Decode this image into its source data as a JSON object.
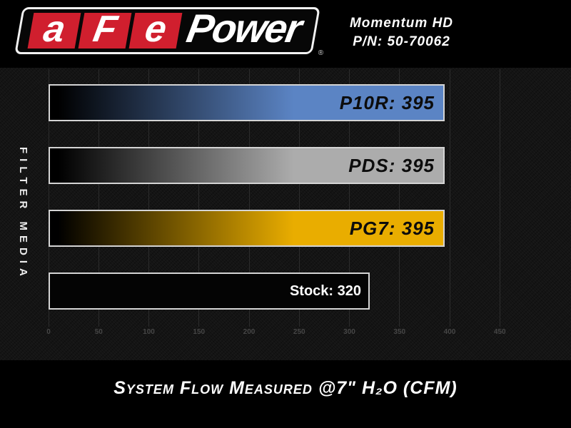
{
  "header": {
    "logo": {
      "letters": [
        "a",
        "F",
        "e"
      ],
      "word": "Power",
      "registered": "®"
    },
    "product": "Momentum HD",
    "part_number": "P/N: 50-70062"
  },
  "chart_data": {
    "type": "bar",
    "orientation": "horizontal",
    "title": "System Flow Measured @7\" H₂O (CFM)",
    "ylabel": "FILTER MEDIA",
    "categories": [
      "P10R",
      "PDS",
      "PG7",
      "Stock"
    ],
    "values": [
      395,
      395,
      395,
      320
    ],
    "bar_labels": [
      "P10R: 395",
      "PDS: 395",
      "PG7: 395",
      "Stock: 320"
    ],
    "bar_colors": [
      "#5b84c4",
      "#acacac",
      "#e9ad00",
      "#000000"
    ],
    "bar_gradient_start": "#000000",
    "xlim": [
      0,
      450
    ],
    "xticks": [
      0,
      50,
      100,
      150,
      200,
      250,
      300,
      350,
      400,
      450
    ],
    "grid": true,
    "legend": "none",
    "background": "#141414"
  },
  "footer": {
    "title": "System Flow Measured @7\" H₂O (CFM)"
  }
}
